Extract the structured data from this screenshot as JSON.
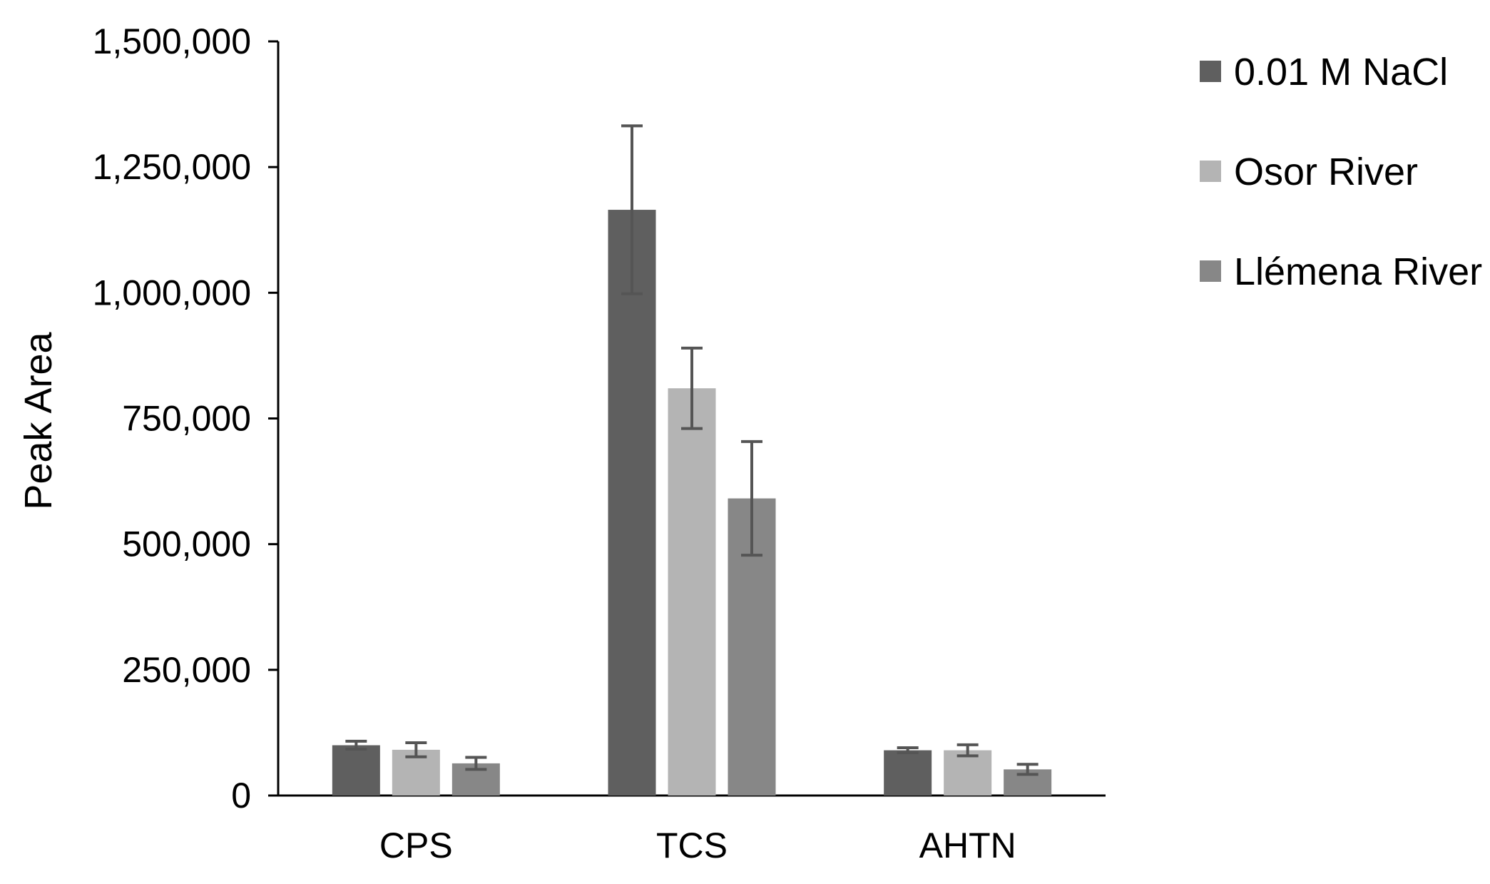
{
  "chart_data": {
    "type": "bar",
    "title": "",
    "xlabel": "",
    "ylabel": "Peak Area",
    "ylim": [
      0,
      1500000
    ],
    "yticks": [
      0,
      250000,
      500000,
      750000,
      1000000,
      1250000,
      1500000
    ],
    "ytick_labels": [
      "0",
      "250,000",
      "500,000",
      "750,000",
      "1,000,000",
      "1,250,000",
      "1,500,000"
    ],
    "categories": [
      "CPS",
      "TCS",
      "AHTN"
    ],
    "grid": false,
    "legend_position": "top-right",
    "error_bars": true,
    "series": [
      {
        "name": "0.01 M NaCl",
        "color": "#5f5f5f",
        "values": [
          100000,
          1165000,
          90000
        ],
        "errors": [
          8000,
          167000,
          5000
        ]
      },
      {
        "name": "Osor River",
        "color": "#b4b4b4",
        "values": [
          91000,
          810000,
          90000
        ],
        "errors": [
          14000,
          80000,
          11000
        ]
      },
      {
        "name": "Llémena River",
        "color": "#878787",
        "values": [
          64000,
          591000,
          52000
        ],
        "errors": [
          12000,
          113000,
          10000
        ]
      }
    ]
  },
  "colors": {
    "axis": "#000000",
    "error_bar": "#555555"
  }
}
